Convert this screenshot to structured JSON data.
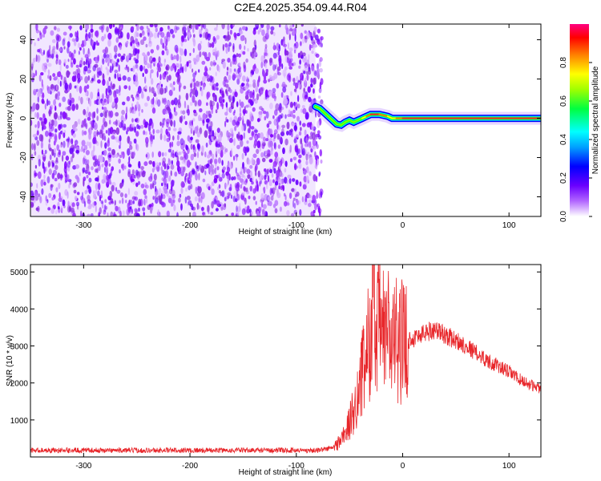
{
  "title": "C2E4.2025.354.09.44.R04",
  "chart_data": [
    {
      "type": "heatmap",
      "xlabel": "Height of straight line (km)",
      "ylabel": "Frequency (Hz)",
      "xlim": [
        -350,
        130
      ],
      "ylim": [
        -50,
        48
      ],
      "xticks": [
        -300,
        -200,
        -100,
        0,
        100
      ],
      "yticks": [
        -40,
        -20,
        0,
        20,
        40
      ],
      "colorbar": {
        "label": "Normalized spectral amplitude",
        "range": [
          0,
          1
        ],
        "ticks": [
          "0.0",
          "0.2",
          "0.4",
          "0.6",
          "0.8"
        ],
        "tick_values": [
          0,
          0.2,
          0.4,
          0.6,
          0.8
        ],
        "colors": [
          "#ffffff",
          "#7f00ff",
          "#0000ff",
          "#00ffff",
          "#00ff00",
          "#ffff00",
          "#ff8000",
          "#ff0000",
          "#ff0080"
        ]
      },
      "noise_region": {
        "x_range": [
          -350,
          -82
        ],
        "y_range": [
          -50,
          48
        ],
        "amplitude": "low (0.0-0.2)"
      },
      "ridge": {
        "x": [
          -82,
          -78,
          -74,
          -70,
          -66,
          -62,
          -58,
          -54,
          -50,
          -46,
          -42,
          -38,
          -34,
          -30,
          -26,
          -22,
          -18,
          -14,
          -10,
          -6,
          0,
          20,
          40,
          60,
          80,
          90,
          100,
          110,
          120,
          130
        ],
        "y": [
          6,
          5,
          3,
          1,
          -1,
          -3,
          -3.5,
          -2,
          -1,
          -2,
          -1,
          0,
          1,
          2,
          2,
          2,
          1.5,
          1,
          0,
          0,
          0,
          0,
          0,
          0,
          0,
          0,
          0,
          0,
          0,
          0
        ],
        "amplitude": [
          0.5,
          0.55,
          0.6,
          0.6,
          0.55,
          0.5,
          0.55,
          0.6,
          0.6,
          0.55,
          0.6,
          0.65,
          0.75,
          0.85,
          0.85,
          0.8,
          0.75,
          0.7,
          0.7,
          0.8,
          0.9,
          0.9,
          0.9,
          0.9,
          0.9,
          0.85,
          0.9,
          0.9,
          0.9,
          0.9
        ]
      }
    },
    {
      "type": "line",
      "xlabel": "Height of straight line (km)",
      "ylabel": "SNR (10 * v/v)",
      "xlim": [
        -350,
        130
      ],
      "ylim": [
        0,
        5200
      ],
      "xticks": [
        -300,
        -200,
        -100,
        0,
        100
      ],
      "yticks": [
        1000,
        2000,
        3000,
        4000,
        5000
      ],
      "series": [
        {
          "color": "#e8262a",
          "x": [
            -350,
            -300,
            -250,
            -200,
            -150,
            -100,
            -80,
            -65,
            -60,
            -55,
            -50,
            -45,
            -40,
            -35,
            -30,
            -28,
            -25,
            -22,
            -20,
            -15,
            -10,
            -5,
            0,
            10,
            20,
            30,
            40,
            50,
            60,
            70,
            80,
            90,
            100,
            110,
            120,
            130
          ],
          "y": [
            180,
            180,
            180,
            180,
            180,
            180,
            180,
            250,
            400,
            600,
            900,
            1400,
            2000,
            2600,
            3500,
            5100,
            2500,
            4200,
            3200,
            3600,
            3000,
            3200,
            3100,
            3200,
            3350,
            3450,
            3300,
            3150,
            3000,
            2800,
            2600,
            2450,
            2300,
            2100,
            1950,
            1850
          ]
        }
      ]
    }
  ]
}
